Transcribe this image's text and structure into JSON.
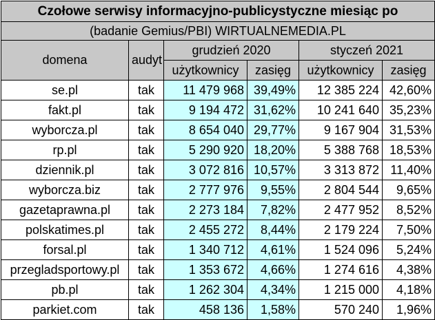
{
  "title": "Czołowe serwisy informacyjno-publicystyczne miesiąc po",
  "subtitle": "(badanie Gemius/PBI) WIRTUALNEMEDIA.PL",
  "headers": {
    "domain": "domena",
    "audit": "audyt",
    "period1": "grudzień 2020",
    "period2": "styczeń 2021",
    "users": "użytkownicy",
    "reach": "zasięg"
  },
  "rows": [
    {
      "domain": "se.pl",
      "audit": "tak",
      "u1": "11 479 968",
      "r1": "39,49%",
      "u2": "12 385 224",
      "r2": "42,60%"
    },
    {
      "domain": "fakt.pl",
      "audit": "tak",
      "u1": "9 194 472",
      "r1": "31,62%",
      "u2": "10 241 640",
      "r2": "35,23%"
    },
    {
      "domain": "wyborcza.pl",
      "audit": "tak",
      "u1": "8 654 040",
      "r1": "29,77%",
      "u2": "9 167 904",
      "r2": "31,53%"
    },
    {
      "domain": "rp.pl",
      "audit": "tak",
      "u1": "5 290 920",
      "r1": "18,20%",
      "u2": "5 388 768",
      "r2": "18,53%"
    },
    {
      "domain": "dziennik.pl",
      "audit": "tak",
      "u1": "3 072 816",
      "r1": "10,57%",
      "u2": "3 313 872",
      "r2": "11,40%"
    },
    {
      "domain": "wyborcza.biz",
      "audit": "tak",
      "u1": "2 777 976",
      "r1": "9,55%",
      "u2": "2 804 544",
      "r2": "9,65%"
    },
    {
      "domain": "gazetaprawna.pl",
      "audit": "tak",
      "u1": "2 273 184",
      "r1": "7,82%",
      "u2": "2 477 952",
      "r2": "8,52%"
    },
    {
      "domain": "polskatimes.pl",
      "audit": "tak",
      "u1": "2 455 272",
      "r1": "8,44%",
      "u2": "2 179 224",
      "r2": "7,50%"
    },
    {
      "domain": "forsal.pl",
      "audit": "tak",
      "u1": "1 340 712",
      "r1": "4,61%",
      "u2": "1 524 096",
      "r2": "5,24%"
    },
    {
      "domain": "przegladsportowy.pl",
      "audit": "tak",
      "u1": "1 353 672",
      "r1": "4,66%",
      "u2": "1 274 616",
      "r2": "4,38%"
    },
    {
      "domain": "pb.pl",
      "audit": "tak",
      "u1": "1 262 304",
      "r1": "4,34%",
      "u2": "1 215 000",
      "r2": "4,18%"
    },
    {
      "domain": "parkiet.com",
      "audit": "tak",
      "u1": "458 136",
      "r1": "1,58%",
      "u2": "570 240",
      "r2": "1,96%"
    }
  ]
}
